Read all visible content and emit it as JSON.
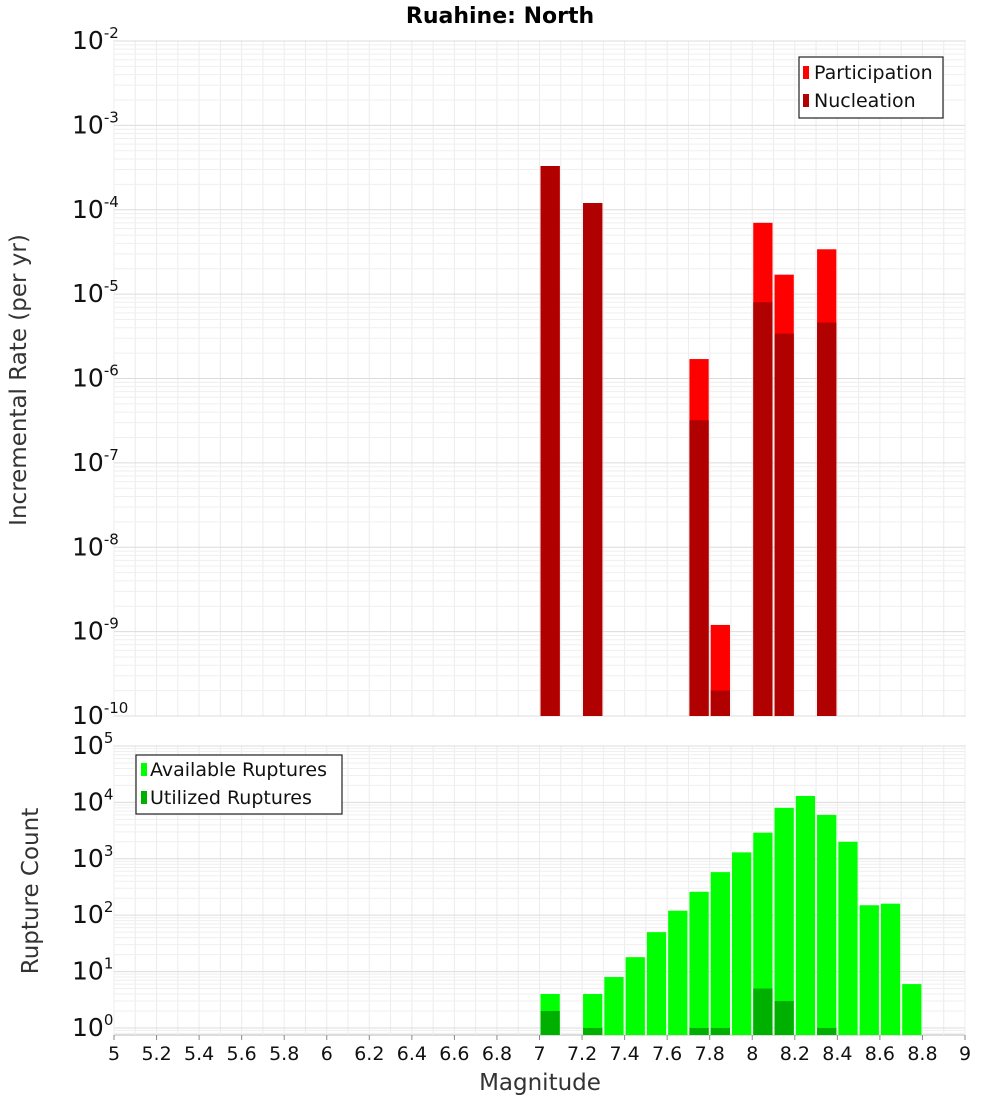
{
  "chart_data": [
    {
      "type": "bar",
      "scale": "log",
      "title": "Ruahine: North",
      "xlabel": "",
      "ylabel": "Incremental Rate (per yr)",
      "xlim": [
        5,
        9
      ],
      "ylim": [
        1e-10,
        0.01
      ],
      "y_tick_exponents": [
        -10,
        -9,
        -8,
        -7,
        -6,
        -5,
        -4,
        -3,
        -2
      ],
      "legend": {
        "position": "top-right",
        "entries": [
          "Participation",
          "Nucleation"
        ]
      },
      "colors": {
        "Participation": "#ff0000",
        "Nucleation": "#b00000"
      },
      "series": [
        {
          "name": "Participation",
          "x": [
            7.05,
            7.25,
            7.75,
            7.85,
            8.05,
            8.15,
            8.35
          ],
          "values": [
            0.00033,
            0.00012,
            1.7e-06,
            1.2e-09,
            7e-05,
            1.7e-05,
            3.4e-05
          ]
        },
        {
          "name": "Nucleation",
          "x": [
            7.05,
            7.25,
            7.75,
            7.85,
            8.05,
            8.15,
            8.35
          ],
          "values": [
            0.00033,
            0.00012,
            3.2e-07,
            2e-10,
            8e-06,
            3.4e-06,
            4.6e-06
          ]
        }
      ]
    },
    {
      "type": "bar",
      "scale": "log",
      "title": "",
      "xlabel": "Magnitude",
      "ylabel": "Rupture Count",
      "xlim": [
        5,
        9
      ],
      "ylim": [
        0.75,
        100000.0
      ],
      "y_tick_exponents": [
        0,
        1,
        2,
        3,
        4,
        5
      ],
      "x_ticks": [
        "5",
        "5.2",
        "5.4",
        "5.6",
        "5.8",
        "6",
        "6.2",
        "6.4",
        "6.6",
        "6.8",
        "7",
        "7.2",
        "7.4",
        "7.6",
        "7.8",
        "8",
        "8.2",
        "8.4",
        "8.6",
        "8.8",
        "9"
      ],
      "legend": {
        "position": "top-left",
        "entries": [
          "Available Ruptures",
          "Utilized Ruptures"
        ]
      },
      "colors": {
        "Available Ruptures": "#00ff00",
        "Utilized Ruptures": "#00b000"
      },
      "series": [
        {
          "name": "Available Ruptures",
          "x": [
            7.05,
            7.25,
            7.35,
            7.45,
            7.55,
            7.65,
            7.75,
            7.85,
            7.95,
            8.05,
            8.15,
            8.25,
            8.35,
            8.45,
            8.55,
            8.65,
            8.75
          ],
          "values": [
            4,
            4,
            8,
            18,
            50,
            120,
            260,
            580,
            1300,
            2900,
            8000,
            13000,
            6000,
            2000,
            150,
            160,
            6
          ]
        },
        {
          "name": "Utilized Ruptures",
          "x": [
            7.05,
            7.25,
            7.75,
            7.85,
            8.05,
            8.15,
            8.35
          ],
          "values": [
            2,
            1,
            1,
            1,
            5,
            3,
            1
          ]
        }
      ]
    }
  ]
}
